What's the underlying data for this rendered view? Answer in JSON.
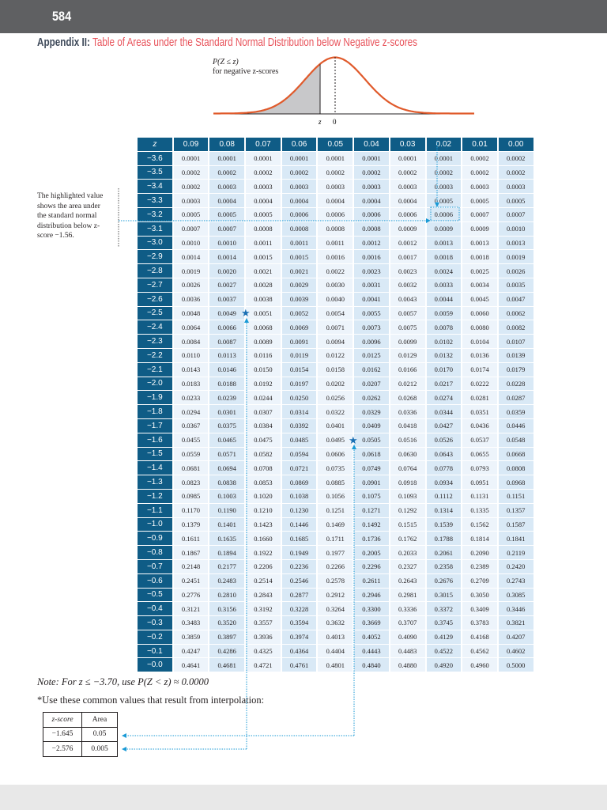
{
  "page_number": "584",
  "title": {
    "lead": "Appendix II:",
    "rest": "Table of Areas under the Standard Normal Distribution below Negative z-scores"
  },
  "figure": {
    "label_line1": "P(Z ≤ z)",
    "label_line2": "for negative z-scores",
    "axis_z": "z",
    "axis_zero": "0",
    "curve_color": "#e05a2b"
  },
  "annotation": "The highlighted value shows the area under the standard normal distribution below z-score −1.56.",
  "table": {
    "header": [
      "z",
      "0.09",
      "0.08",
      "0.07",
      "0.06",
      "0.05",
      "0.04",
      "0.03",
      "0.02",
      "0.01",
      "0.00"
    ],
    "rows": [
      [
        "−3.6",
        "0.0001",
        "0.0001",
        "0.0001",
        "0.0001",
        "0.0001",
        "0.0001",
        "0.0001",
        "0.0001",
        "0.0002",
        "0.0002"
      ],
      [
        "−3.5",
        "0.0002",
        "0.0002",
        "0.0002",
        "0.0002",
        "0.0002",
        "0.0002",
        "0.0002",
        "0.0002",
        "0.0002",
        "0.0002"
      ],
      [
        "−3.4",
        "0.0002",
        "0.0003",
        "0.0003",
        "0.0003",
        "0.0003",
        "0.0003",
        "0.0003",
        "0.0003",
        "0.0003",
        "0.0003"
      ],
      [
        "−3.3",
        "0.0003",
        "0.0004",
        "0.0004",
        "0.0004",
        "0.0004",
        "0.0004",
        "0.0004",
        "0.0005",
        "0.0005",
        "0.0005"
      ],
      [
        "−3.2",
        "0.0005",
        "0.0005",
        "0.0005",
        "0.0006",
        "0.0006",
        "0.0006",
        "0.0006",
        "0.0006",
        "0.0007",
        "0.0007"
      ],
      [
        "−3.1",
        "0.0007",
        "0.0007",
        "0.0008",
        "0.0008",
        "0.0008",
        "0.0008",
        "0.0009",
        "0.0009",
        "0.0009",
        "0.0010"
      ],
      [
        "−3.0",
        "0.0010",
        "0.0010",
        "0.0011",
        "0.0011",
        "0.0011",
        "0.0012",
        "0.0012",
        "0.0013",
        "0.0013",
        "0.0013"
      ],
      [
        "−2.9",
        "0.0014",
        "0.0014",
        "0.0015",
        "0.0015",
        "0.0016",
        "0.0016",
        "0.0017",
        "0.0018",
        "0.0018",
        "0.0019"
      ],
      [
        "−2.8",
        "0.0019",
        "0.0020",
        "0.0021",
        "0.0021",
        "0.0022",
        "0.0023",
        "0.0023",
        "0.0024",
        "0.0025",
        "0.0026"
      ],
      [
        "−2.7",
        "0.0026",
        "0.0027",
        "0.0028",
        "0.0029",
        "0.0030",
        "0.0031",
        "0.0032",
        "0.0033",
        "0.0034",
        "0.0035"
      ],
      [
        "−2.6",
        "0.0036",
        "0.0037",
        "0.0038",
        "0.0039",
        "0.0040",
        "0.0041",
        "0.0043",
        "0.0044",
        "0.0045",
        "0.0047"
      ],
      [
        "−2.5",
        "0.0048",
        "0.0049",
        "0.0051",
        "0.0052",
        "0.0054",
        "0.0055",
        "0.0057",
        "0.0059",
        "0.0060",
        "0.0062"
      ],
      [
        "−2.4",
        "0.0064",
        "0.0066",
        "0.0068",
        "0.0069",
        "0.0071",
        "0.0073",
        "0.0075",
        "0.0078",
        "0.0080",
        "0.0082"
      ],
      [
        "−2.3",
        "0.0084",
        "0.0087",
        "0.0089",
        "0.0091",
        "0.0094",
        "0.0096",
        "0.0099",
        "0.0102",
        "0.0104",
        "0.0107"
      ],
      [
        "−2.2",
        "0.0110",
        "0.0113",
        "0.0116",
        "0.0119",
        "0.0122",
        "0.0125",
        "0.0129",
        "0.0132",
        "0.0136",
        "0.0139"
      ],
      [
        "−2.1",
        "0.0143",
        "0.0146",
        "0.0150",
        "0.0154",
        "0.0158",
        "0.0162",
        "0.0166",
        "0.0170",
        "0.0174",
        "0.0179"
      ],
      [
        "−2.0",
        "0.0183",
        "0.0188",
        "0.0192",
        "0.0197",
        "0.0202",
        "0.0207",
        "0.0212",
        "0.0217",
        "0.0222",
        "0.0228"
      ],
      [
        "−1.9",
        "0.0233",
        "0.0239",
        "0.0244",
        "0.0250",
        "0.0256",
        "0.0262",
        "0.0268",
        "0.0274",
        "0.0281",
        "0.0287"
      ],
      [
        "−1.8",
        "0.0294",
        "0.0301",
        "0.0307",
        "0.0314",
        "0.0322",
        "0.0329",
        "0.0336",
        "0.0344",
        "0.0351",
        "0.0359"
      ],
      [
        "−1.7",
        "0.0367",
        "0.0375",
        "0.0384",
        "0.0392",
        "0.0401",
        "0.0409",
        "0.0418",
        "0.0427",
        "0.0436",
        "0.0446"
      ],
      [
        "−1.6",
        "0.0455",
        "0.0465",
        "0.0475",
        "0.0485",
        "0.0495",
        "0.0505",
        "0.0516",
        "0.0526",
        "0.0537",
        "0.0548"
      ],
      [
        "−1.5",
        "0.0559",
        "0.0571",
        "0.0582",
        "0.0594",
        "0.0606",
        "0.0618",
        "0.0630",
        "0.0643",
        "0.0655",
        "0.0668"
      ],
      [
        "−1.4",
        "0.0681",
        "0.0694",
        "0.0708",
        "0.0721",
        "0.0735",
        "0.0749",
        "0.0764",
        "0.0778",
        "0.0793",
        "0.0808"
      ],
      [
        "−1.3",
        "0.0823",
        "0.0838",
        "0.0853",
        "0.0869",
        "0.0885",
        "0.0901",
        "0.0918",
        "0.0934",
        "0.0951",
        "0.0968"
      ],
      [
        "−1.2",
        "0.0985",
        "0.1003",
        "0.1020",
        "0.1038",
        "0.1056",
        "0.1075",
        "0.1093",
        "0.1112",
        "0.1131",
        "0.1151"
      ],
      [
        "−1.1",
        "0.1170",
        "0.1190",
        "0.1210",
        "0.1230",
        "0.1251",
        "0.1271",
        "0.1292",
        "0.1314",
        "0.1335",
        "0.1357"
      ],
      [
        "−1.0",
        "0.1379",
        "0.1401",
        "0.1423",
        "0.1446",
        "0.1469",
        "0.1492",
        "0.1515",
        "0.1539",
        "0.1562",
        "0.1587"
      ],
      [
        "−0.9",
        "0.1611",
        "0.1635",
        "0.1660",
        "0.1685",
        "0.1711",
        "0.1736",
        "0.1762",
        "0.1788",
        "0.1814",
        "0.1841"
      ],
      [
        "−0.8",
        "0.1867",
        "0.1894",
        "0.1922",
        "0.1949",
        "0.1977",
        "0.2005",
        "0.2033",
        "0.2061",
        "0.2090",
        "0.2119"
      ],
      [
        "−0.7",
        "0.2148",
        "0.2177",
        "0.2206",
        "0.2236",
        "0.2266",
        "0.2296",
        "0.2327",
        "0.2358",
        "0.2389",
        "0.2420"
      ],
      [
        "−0.6",
        "0.2451",
        "0.2483",
        "0.2514",
        "0.2546",
        "0.2578",
        "0.2611",
        "0.2643",
        "0.2676",
        "0.2709",
        "0.2743"
      ],
      [
        "−0.5",
        "0.2776",
        "0.2810",
        "0.2843",
        "0.2877",
        "0.2912",
        "0.2946",
        "0.2981",
        "0.3015",
        "0.3050",
        "0.3085"
      ],
      [
        "−0.4",
        "0.3121",
        "0.3156",
        "0.3192",
        "0.3228",
        "0.3264",
        "0.3300",
        "0.3336",
        "0.3372",
        "0.3409",
        "0.3446"
      ],
      [
        "−0.3",
        "0.3483",
        "0.3520",
        "0.3557",
        "0.3594",
        "0.3632",
        "0.3669",
        "0.3707",
        "0.3745",
        "0.3783",
        "0.3821"
      ],
      [
        "−0.2",
        "0.3859",
        "0.3897",
        "0.3936",
        "0.3974",
        "0.4013",
        "0.4052",
        "0.4090",
        "0.4129",
        "0.4168",
        "0.4207"
      ],
      [
        "−0.1",
        "0.4247",
        "0.4286",
        "0.4325",
        "0.4364",
        "0.4404",
        "0.4443",
        "0.4483",
        "0.4522",
        "0.4562",
        "0.4602"
      ],
      [
        "−0.0",
        "0.4641",
        "0.4681",
        "0.4721",
        "0.4761",
        "0.4801",
        "0.4840",
        "0.4880",
        "0.4920",
        "0.4960",
        "0.5000"
      ]
    ],
    "header_color": "#0f5c86",
    "annotation_color": "#1a9ad6"
  },
  "note": "Note: For z ≤ −3.70, use P(Z < z) ≈ 0.0000",
  "interpolation": {
    "intro": "*Use these common values that result from interpolation:",
    "header": [
      "z-score",
      "Area"
    ],
    "rows": [
      [
        "−1.645",
        "0.05"
      ],
      [
        "−2.576",
        "0.005"
      ]
    ]
  }
}
